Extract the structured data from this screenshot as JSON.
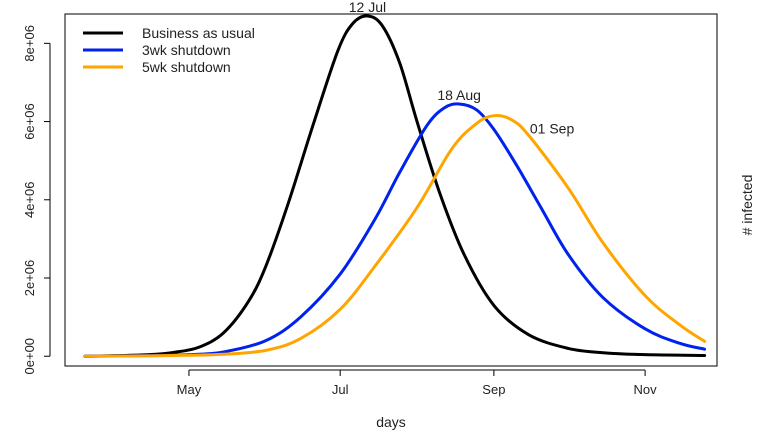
{
  "chart_data": {
    "type": "line",
    "xlabel": "days",
    "ylabel": "# infected",
    "x_axis": {
      "type": "date",
      "range": [
        "2020-03-12",
        "2020-11-30"
      ],
      "ticks": [
        {
          "date": "2020-05-01",
          "label": "May"
        },
        {
          "date": "2020-07-01",
          "label": "Jul"
        },
        {
          "date": "2020-09-01",
          "label": "Sep"
        },
        {
          "date": "2020-11-01",
          "label": "Nov"
        }
      ]
    },
    "y_axis": {
      "range": [
        -250000,
        8750000
      ],
      "ticks": [
        {
          "value": 0,
          "label": "0e+00"
        },
        {
          "value": 2000000,
          "label": "2e+06"
        },
        {
          "value": 4000000,
          "label": "4e+06"
        },
        {
          "value": 6000000,
          "label": "6e+06"
        },
        {
          "value": 8000000,
          "label": "8e+06"
        }
      ]
    },
    "legend_position": "top-left",
    "series": [
      {
        "name": "Business as usual",
        "color": "#000000",
        "points": [
          [
            "2020-03-20",
            0
          ],
          [
            "2020-04-01",
            15000
          ],
          [
            "2020-04-15",
            40000
          ],
          [
            "2020-04-25",
            100000
          ],
          [
            "2020-05-05",
            230000
          ],
          [
            "2020-05-15",
            600000
          ],
          [
            "2020-05-25",
            1400000
          ],
          [
            "2020-06-01",
            2300000
          ],
          [
            "2020-06-10",
            3900000
          ],
          [
            "2020-06-20",
            5900000
          ],
          [
            "2020-06-30",
            7800000
          ],
          [
            "2020-07-06",
            8500000
          ],
          [
            "2020-07-12",
            8700000
          ],
          [
            "2020-07-18",
            8450000
          ],
          [
            "2020-07-25",
            7500000
          ],
          [
            "2020-08-01",
            6000000
          ],
          [
            "2020-08-10",
            4200000
          ],
          [
            "2020-08-20",
            2600000
          ],
          [
            "2020-09-01",
            1300000
          ],
          [
            "2020-09-15",
            550000
          ],
          [
            "2020-10-01",
            200000
          ],
          [
            "2020-10-15",
            90000
          ],
          [
            "2020-11-01",
            40000
          ],
          [
            "2020-11-25",
            20000
          ]
        ]
      },
      {
        "name": "3wk shutdown",
        "color": "#0022ee",
        "points": [
          [
            "2020-03-20",
            0
          ],
          [
            "2020-04-15",
            20000
          ],
          [
            "2020-05-01",
            40000
          ],
          [
            "2020-05-15",
            110000
          ],
          [
            "2020-06-01",
            400000
          ],
          [
            "2020-06-15",
            1000000
          ],
          [
            "2020-07-01",
            2100000
          ],
          [
            "2020-07-15",
            3500000
          ],
          [
            "2020-07-25",
            4700000
          ],
          [
            "2020-08-05",
            5900000
          ],
          [
            "2020-08-12",
            6350000
          ],
          [
            "2020-08-18",
            6450000
          ],
          [
            "2020-08-25",
            6300000
          ],
          [
            "2020-09-01",
            5800000
          ],
          [
            "2020-09-10",
            4900000
          ],
          [
            "2020-09-20",
            3800000
          ],
          [
            "2020-10-01",
            2600000
          ],
          [
            "2020-10-15",
            1500000
          ],
          [
            "2020-11-01",
            700000
          ],
          [
            "2020-11-15",
            330000
          ],
          [
            "2020-11-25",
            180000
          ]
        ]
      },
      {
        "name": "5wk shutdown",
        "color": "#ffa500",
        "points": [
          [
            "2020-03-20",
            0
          ],
          [
            "2020-04-15",
            10000
          ],
          [
            "2020-05-01",
            25000
          ],
          [
            "2020-05-15",
            50000
          ],
          [
            "2020-06-01",
            150000
          ],
          [
            "2020-06-15",
            450000
          ],
          [
            "2020-07-01",
            1200000
          ],
          [
            "2020-07-15",
            2300000
          ],
          [
            "2020-08-01",
            3800000
          ],
          [
            "2020-08-15",
            5300000
          ],
          [
            "2020-08-25",
            5950000
          ],
          [
            "2020-09-01",
            6150000
          ],
          [
            "2020-09-08",
            6050000
          ],
          [
            "2020-09-15",
            5650000
          ],
          [
            "2020-10-01",
            4300000
          ],
          [
            "2020-10-15",
            2900000
          ],
          [
            "2020-11-01",
            1550000
          ],
          [
            "2020-11-15",
            800000
          ],
          [
            "2020-11-25",
            380000
          ]
        ]
      }
    ],
    "annotations": [
      {
        "label": "12 Jul",
        "date": "2020-07-12",
        "value": 8700000
      },
      {
        "label": "18 Aug",
        "date": "2020-08-18",
        "value": 6450000
      },
      {
        "label": "01 Sep",
        "date": "2020-09-01",
        "value": 6150000
      }
    ]
  }
}
